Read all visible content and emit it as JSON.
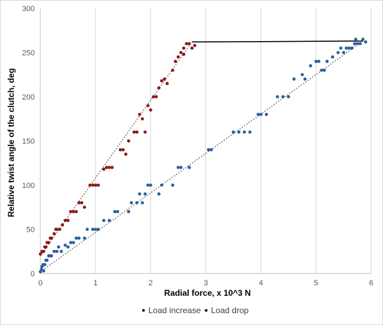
{
  "chart_data": {
    "type": "scatter",
    "xlabel": "Radial force, x 10^3 N",
    "ylabel": "Relative twist angle of the clutch, deg",
    "xlim": [
      0,
      6
    ],
    "ylim": [
      0,
      300
    ],
    "xticks": [
      0,
      1,
      2,
      3,
      4,
      5,
      6
    ],
    "yticks": [
      0,
      50,
      100,
      150,
      200,
      250,
      300
    ],
    "grid": "vertical",
    "legend_position": "bottom",
    "series": [
      {
        "name": "Load increase",
        "color": "#2e5e9e",
        "points": [
          [
            0.0,
            2
          ],
          [
            0.02,
            5
          ],
          [
            0.03,
            8
          ],
          [
            0.05,
            10
          ],
          [
            0.06,
            3
          ],
          [
            0.08,
            10
          ],
          [
            0.1,
            15
          ],
          [
            0.12,
            15
          ],
          [
            0.15,
            20
          ],
          [
            0.18,
            20
          ],
          [
            0.2,
            20
          ],
          [
            0.25,
            25
          ],
          [
            0.3,
            25
          ],
          [
            0.33,
            30
          ],
          [
            0.38,
            25
          ],
          [
            0.45,
            32
          ],
          [
            0.5,
            30
          ],
          [
            0.55,
            35
          ],
          [
            0.6,
            35
          ],
          [
            0.65,
            40
          ],
          [
            0.7,
            40
          ],
          [
            0.8,
            40
          ],
          [
            0.85,
            50
          ],
          [
            0.95,
            50
          ],
          [
            1.0,
            50
          ],
          [
            1.05,
            50
          ],
          [
            1.15,
            60
          ],
          [
            1.25,
            60
          ],
          [
            1.35,
            70
          ],
          [
            1.4,
            70
          ],
          [
            1.6,
            70
          ],
          [
            1.65,
            80
          ],
          [
            1.75,
            80
          ],
          [
            1.8,
            90
          ],
          [
            1.85,
            80
          ],
          [
            1.9,
            90
          ],
          [
            1.95,
            100
          ],
          [
            2.0,
            100
          ],
          [
            2.15,
            90
          ],
          [
            2.2,
            100
          ],
          [
            2.4,
            100
          ],
          [
            2.5,
            120
          ],
          [
            2.55,
            120
          ],
          [
            2.7,
            120
          ],
          [
            3.05,
            140
          ],
          [
            3.1,
            140
          ],
          [
            3.5,
            160
          ],
          [
            3.6,
            160
          ],
          [
            3.7,
            160
          ],
          [
            3.8,
            160
          ],
          [
            3.95,
            180
          ],
          [
            4.0,
            180
          ],
          [
            4.1,
            180
          ],
          [
            4.3,
            200
          ],
          [
            4.4,
            200
          ],
          [
            4.5,
            200
          ],
          [
            4.6,
            220
          ],
          [
            4.75,
            225
          ],
          [
            4.8,
            220
          ],
          [
            4.9,
            235
          ],
          [
            5.0,
            240
          ],
          [
            5.05,
            240
          ],
          [
            5.1,
            230
          ],
          [
            5.15,
            230
          ],
          [
            5.2,
            240
          ],
          [
            5.3,
            245
          ],
          [
            5.4,
            250
          ],
          [
            5.45,
            255
          ],
          [
            5.5,
            250
          ],
          [
            5.55,
            255
          ],
          [
            5.6,
            255
          ],
          [
            5.65,
            255
          ],
          [
            5.7,
            260
          ],
          [
            5.75,
            260
          ],
          [
            5.8,
            260
          ],
          [
            5.85,
            265
          ],
          [
            5.9,
            262
          ],
          [
            5.72,
            265
          ]
        ]
      },
      {
        "name": "Load drop",
        "color": "#8b1a1a",
        "points": [
          [
            0.0,
            22
          ],
          [
            0.03,
            25
          ],
          [
            0.06,
            25
          ],
          [
            0.08,
            30
          ],
          [
            0.1,
            30
          ],
          [
            0.12,
            35
          ],
          [
            0.15,
            35
          ],
          [
            0.18,
            40
          ],
          [
            0.2,
            40
          ],
          [
            0.25,
            45
          ],
          [
            0.28,
            50
          ],
          [
            0.3,
            50
          ],
          [
            0.35,
            50
          ],
          [
            0.4,
            55
          ],
          [
            0.45,
            60
          ],
          [
            0.5,
            60
          ],
          [
            0.55,
            70
          ],
          [
            0.6,
            70
          ],
          [
            0.65,
            70
          ],
          [
            0.7,
            80
          ],
          [
            0.75,
            80
          ],
          [
            0.8,
            75
          ],
          [
            0.9,
            100
          ],
          [
            0.95,
            100
          ],
          [
            1.0,
            100
          ],
          [
            1.05,
            100
          ],
          [
            1.15,
            118
          ],
          [
            1.2,
            120
          ],
          [
            1.25,
            120
          ],
          [
            1.3,
            120
          ],
          [
            1.45,
            140
          ],
          [
            1.5,
            140
          ],
          [
            1.55,
            135
          ],
          [
            1.6,
            150
          ],
          [
            1.7,
            160
          ],
          [
            1.75,
            160
          ],
          [
            1.8,
            180
          ],
          [
            1.85,
            175
          ],
          [
            1.9,
            160
          ],
          [
            1.95,
            190
          ],
          [
            2.0,
            185
          ],
          [
            2.05,
            200
          ],
          [
            2.1,
            200
          ],
          [
            2.15,
            210
          ],
          [
            2.2,
            218
          ],
          [
            2.25,
            220
          ],
          [
            2.3,
            215
          ],
          [
            2.4,
            230
          ],
          [
            2.45,
            240
          ],
          [
            2.5,
            245
          ],
          [
            2.55,
            250
          ],
          [
            2.6,
            255
          ],
          [
            2.65,
            260
          ],
          [
            2.7,
            260
          ],
          [
            2.75,
            255
          ],
          [
            2.8,
            258
          ],
          [
            2.6,
            248
          ]
        ]
      }
    ],
    "trendlines": [
      {
        "series": "Load increase",
        "style": "dotted",
        "from": [
          0.0,
          2
        ],
        "to": [
          5.85,
          263
        ]
      },
      {
        "series": "Load drop",
        "style": "dotted",
        "from": [
          0.0,
          20
        ],
        "to": [
          2.75,
          262
        ]
      }
    ],
    "connector_line": {
      "from": [
        2.75,
        262
      ],
      "to": [
        5.85,
        263
      ],
      "color": "#000000"
    }
  }
}
